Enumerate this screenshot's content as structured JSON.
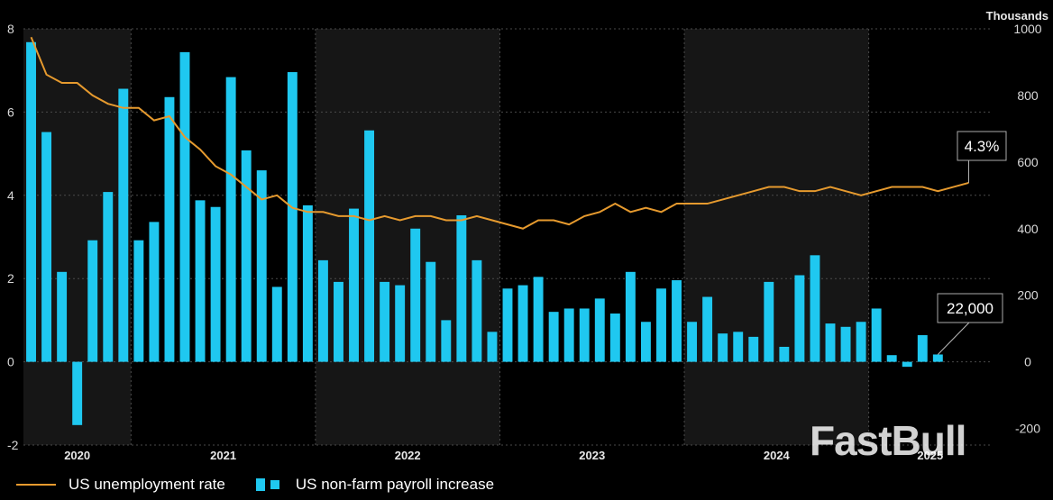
{
  "colors": {
    "background": "#000000",
    "bars": "#1fc8f0",
    "line": "#e69a2e",
    "grid": "#4a4a4a",
    "shade": "#161616"
  },
  "watermark": "FastBull",
  "legend": {
    "line_label": "US unemployment rate",
    "bar_label": "US non-farm payroll increase"
  },
  "chart_data": {
    "type": "bar",
    "title": "",
    "left_axis": {
      "ticks": [
        "8",
        "6",
        "4",
        "2",
        "0",
        "-2"
      ],
      "range": [
        -2,
        8
      ],
      "unit": "%"
    },
    "right_axis": {
      "label": "Thousands",
      "ticks": [
        "1000",
        "800",
        "600",
        "400",
        "200",
        "0",
        "-200"
      ],
      "range": [
        -250,
        1000
      ]
    },
    "x_ticks": [
      "2020",
      "2021",
      "2022",
      "2023",
      "2024",
      "2025"
    ],
    "shaded_years": [
      "2020",
      "2022",
      "2024"
    ],
    "months": [
      "2020-06",
      "2020-07",
      "2020-08",
      "2020-09",
      "2020-10",
      "2020-11",
      "2020-12",
      "2021-01",
      "2021-02",
      "2021-03",
      "2021-04",
      "2021-05",
      "2021-06",
      "2021-07",
      "2021-08",
      "2021-09",
      "2021-10",
      "2021-11",
      "2021-12",
      "2022-01",
      "2022-02",
      "2022-03",
      "2022-04",
      "2022-05",
      "2022-06",
      "2022-07",
      "2022-08",
      "2022-09",
      "2022-10",
      "2022-11",
      "2022-12",
      "2023-01",
      "2023-02",
      "2023-03",
      "2023-04",
      "2023-05",
      "2023-06",
      "2023-07",
      "2023-08",
      "2023-09",
      "2023-10",
      "2023-11",
      "2023-12",
      "2024-01",
      "2024-02",
      "2024-03",
      "2024-04",
      "2024-05",
      "2024-06",
      "2024-07",
      "2024-08",
      "2024-09",
      "2024-10",
      "2024-11",
      "2024-12",
      "2025-01",
      "2025-02",
      "2025-03",
      "2025-04",
      "2025-05",
      "2025-06",
      "2025-07",
      "2025-08"
    ],
    "series": [
      {
        "name": "US non-farm payroll increase",
        "axis": "right",
        "values": [
          960,
          690,
          270,
          -190,
          365,
          510,
          820,
          365,
          420,
          795,
          930,
          485,
          465,
          855,
          635,
          575,
          225,
          870,
          470,
          305,
          240,
          460,
          695,
          240,
          230,
          400,
          300,
          125,
          440,
          305,
          90,
          220,
          230,
          255,
          150,
          160,
          160,
          190,
          145,
          270,
          120,
          220,
          245,
          120,
          195,
          85,
          90,
          75,
          240,
          45,
          260,
          320,
          115,
          105,
          120,
          160,
          20,
          -15,
          80,
          22
        ],
        "start_index": 0
      },
      {
        "name": "US unemployment rate",
        "axis": "left",
        "values": [
          7.8,
          6.9,
          6.7,
          6.7,
          6.4,
          6.2,
          6.1,
          6.1,
          5.8,
          5.9,
          5.4,
          5.1,
          4.7,
          4.5,
          4.2,
          3.9,
          4.0,
          3.7,
          3.6,
          3.6,
          3.5,
          3.5,
          3.4,
          3.5,
          3.4,
          3.5,
          3.5,
          3.4,
          3.4,
          3.5,
          3.4,
          3.3,
          3.2,
          3.4,
          3.4,
          3.3,
          3.5,
          3.6,
          3.8,
          3.6,
          3.7,
          3.6,
          3.8,
          3.8,
          3.8,
          3.9,
          4.0,
          4.1,
          4.2,
          4.2,
          4.1,
          4.1,
          4.2,
          4.1,
          4.0,
          4.1,
          4.2,
          4.2,
          4.2,
          4.1,
          4.2,
          4.3
        ]
      }
    ],
    "annotations": [
      {
        "text": "4.3%",
        "series": "US unemployment rate"
      },
      {
        "text": "22,000",
        "series": "US non-farm payroll increase"
      }
    ]
  }
}
